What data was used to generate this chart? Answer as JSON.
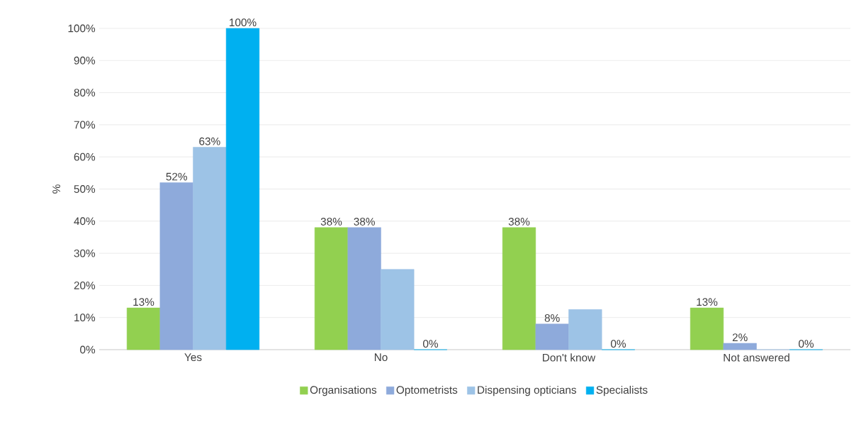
{
  "chart_data": {
    "type": "bar",
    "ylabel": "%",
    "categories": [
      "Yes",
      "No",
      "Don't know",
      "Not answered"
    ],
    "series": [
      {
        "name": "Organisations",
        "color": "#92d050",
        "values": [
          13,
          38,
          38,
          13
        ],
        "value_labels": [
          "13%",
          "38%",
          "38%",
          "13%"
        ]
      },
      {
        "name": "Optometrists",
        "color": "#8eaadb",
        "values": [
          52,
          38,
          8,
          2
        ],
        "value_labels": [
          "52%",
          "38%",
          "8%",
          "2%"
        ]
      },
      {
        "name": "Dispensing opticians",
        "color": "#9dc3e6",
        "values": [
          63,
          25,
          12.5,
          0
        ],
        "value_labels": [
          "63%",
          null,
          null,
          null
        ]
      },
      {
        "name": "Specialists",
        "color": "#00b0f0",
        "values": [
          100,
          0,
          0,
          0
        ],
        "value_labels": [
          "100%",
          "0%",
          "0%",
          "0%"
        ]
      }
    ],
    "ylim": [
      0,
      100
    ],
    "yticks": [
      {
        "value": 0,
        "label": "0%"
      },
      {
        "value": 10,
        "label": "10%"
      },
      {
        "value": 20,
        "label": "20%"
      },
      {
        "value": 30,
        "label": "30%"
      },
      {
        "value": 40,
        "label": "40%"
      },
      {
        "value": 50,
        "label": "50%"
      },
      {
        "value": 60,
        "label": "60%"
      },
      {
        "value": 70,
        "label": "70%"
      },
      {
        "value": 80,
        "label": "80%"
      },
      {
        "value": 90,
        "label": "90%"
      },
      {
        "value": 100,
        "label": "100%"
      }
    ],
    "grid": "y",
    "legend": "bottom"
  }
}
